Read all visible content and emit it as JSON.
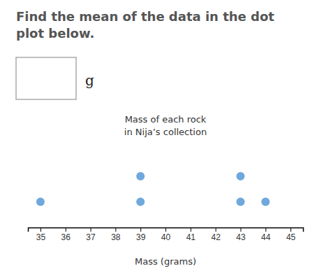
{
  "chart_data": {
    "type": "dot",
    "title": "Find the mean of the data in the dot\nplot below.",
    "subtitle": "Mass of each rock\nin Nija’s collection",
    "x_label": "Mass (grams)",
    "annotations": [
      "g"
    ],
    "x": [
      35,
      39,
      39,
      43,
      43,
      44
    ],
    "values": [
      1,
      1,
      2,
      1,
      2,
      1
    ],
    "color": "#6fa8dc",
    "xlim": [
      34.5,
      45.5
    ],
    "xticks": [
      35,
      36,
      37,
      38,
      39,
      40,
      41,
      42,
      43,
      44,
      45
    ],
    "ylim": [
      0,
      3
    ],
    "tick_labels": "x",
    "grid": false
  }
}
